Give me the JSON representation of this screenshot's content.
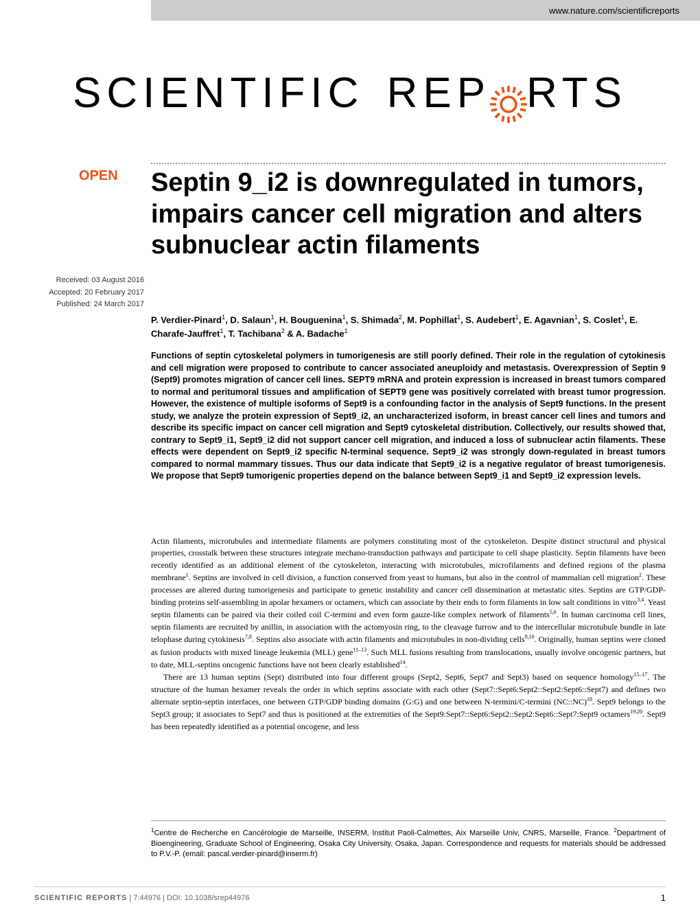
{
  "header": {
    "url": "www.nature.com/scientificreports"
  },
  "logo": {
    "part1": "SCIENTIFIC",
    "part2": "REP",
    "part3": "RTS",
    "gear_color": "#e85412"
  },
  "badge": {
    "text": "OPEN",
    "color": "#e85412"
  },
  "title": "Septin 9_i2 is downregulated in tumors, impairs cancer cell migration and alters subnuclear actin filaments",
  "metadata": {
    "received": "Received: 03 August 2016",
    "accepted": "Accepted: 20 February 2017",
    "published": "Published: 24 March 2017"
  },
  "authors_html": "P. Verdier-Pinard<sup>1</sup>, D. Salaun<sup>1</sup>, H. Bouguenina<sup>1</sup>, S. Shimada<sup>2</sup>, M. Pophillat<sup>1</sup>, S. Audebert<sup>1</sup>, E. Agavnian<sup>1</sup>, S. Coslet<sup>1</sup>, E. Charafe-Jauffret<sup>1</sup>, T. Tachibana<sup>2</sup> & A. Badache<sup>1</sup>",
  "abstract": "Functions of septin cytoskeletal polymers in tumorigenesis are still poorly defined. Their role in the regulation of cytokinesis and cell migration were proposed to contribute to cancer associated aneuploidy and metastasis. Overexpression of Septin 9 (Sept9) promotes migration of cancer cell lines. SEPT9 mRNA and protein expression is increased in breast tumors compared to normal and peritumoral tissues and amplification of SEPT9 gene was positively correlated with breast tumor progression. However, the existence of multiple isoforms of Sept9 is a confounding factor in the analysis of Sept9 functions. In the present study, we analyze the protein expression of Sept9_i2, an uncharacterized isoform, in breast cancer cell lines and tumors and describe its specific impact on cancer cell migration and Sept9 cytoskeletal distribution. Collectively, our results showed that, contrary to Sept9_i1, Sept9_i2 did not support cancer cell migration, and induced a loss of subnuclear actin filaments. These effects were dependent on Sept9_i2 specific N-terminal sequence. Sept9_i2 was strongly down-regulated in breast tumors compared to normal mammary tissues. Thus our data indicate that Sept9_i2 is a negative regulator of breast tumorigenesis. We propose that Sept9 tumorigenic properties depend on the balance between Sept9_i1 and Sept9_i2 expression levels.",
  "body": {
    "p1": "Actin filaments, microtubules and intermediate filaments are polymers constituting most of the cytoskeleton. Despite distinct structural and physical properties, crosstalk between these structures integrate mechano-transduction pathways and participate to cell shape plasticity. Septin filaments have been recently identified as an additional element of the cytoskeleton, interacting with microtubules, microfilaments and defined regions of the plasma membrane<sup>1</sup>. Septins are involved in cell division, a function conserved from yeast to humans, but also in the control of mammalian cell migration<sup>2</sup>. These processes are altered during tumorigenesis and participate to genetic instability and cancer cell dissemination at metastatic sites. Septins are GTP/GDP-binding proteins self-assembling in apolar hexamers or octamers, which can associate by their ends to form filaments in low salt conditions in vitro<sup>3,4</sup>. Yeast septin filaments can be paired via their coiled coil C-termini and even form gauze-like complex network of filaments<sup>5,6</sup>. In human carcinoma cell lines, septin filaments are recruited by anillin, in association with the actomyosin ring, to the cleavage furrow and to the intercellular microtubule bundle in late telophase during cytokinesis<sup>7,8</sup>. Septins also associate with actin filaments and microtubules in non-dividing cells<sup>9,10</sup>. Originally, human septins were cloned as fusion products with mixed lineage leukemia (MLL) gene<sup>11–13</sup>. Such MLL fusions resulting from translocations, usually involve oncogenic partners, but to date, MLL-septins oncogenic functions have not been clearly established<sup>14</sup>.",
    "p2": "There are 13 human septins (Sept) distributed into four different groups (Sept2, Sept6, Sept7 and Sept3) based on sequence homology<sup>15–17</sup>. The structure of the human hexamer reveals the order in which septins associate with each other (Sept7::Sept6:Sept2::Sept2:Sept6::Sept7) and defines two alternate septin-septin interfaces, one between GTP/GDP binding domains (G:G) and one between N-termini/C-termini (NC::NC)<sup>18</sup>. Sept9 belongs to the Sept3 group; it associates to Sept7 and thus is positioned at the extremities of the Sept9:Sept7::Sept6:Sept2::Sept2:Sept6::Sept7:Sept9 octamers<sup>19,20</sup>. Sept9 has been repeatedly identified as a potential oncogene, and less"
  },
  "affiliations": "<sup>1</sup>Centre de Recherche en Cancérologie de Marseille, INSERM, Institut Paoli-Calmettes, Aix Marseille Univ, CNRS, Marseille, France. <sup>2</sup>Department of Bioengineering, Graduate School of Engineering, Osaka City University, Osaka, Japan. Correspondence and requests for materials should be addressed to P.V.-P. (email: pascal.verdier-pinard@inserm.fr)",
  "footer": {
    "journal": "SCIENTIFIC REPORTS",
    "citation": " | 7:44976 | DOI: 10.1038/srep44976",
    "page": "1"
  }
}
